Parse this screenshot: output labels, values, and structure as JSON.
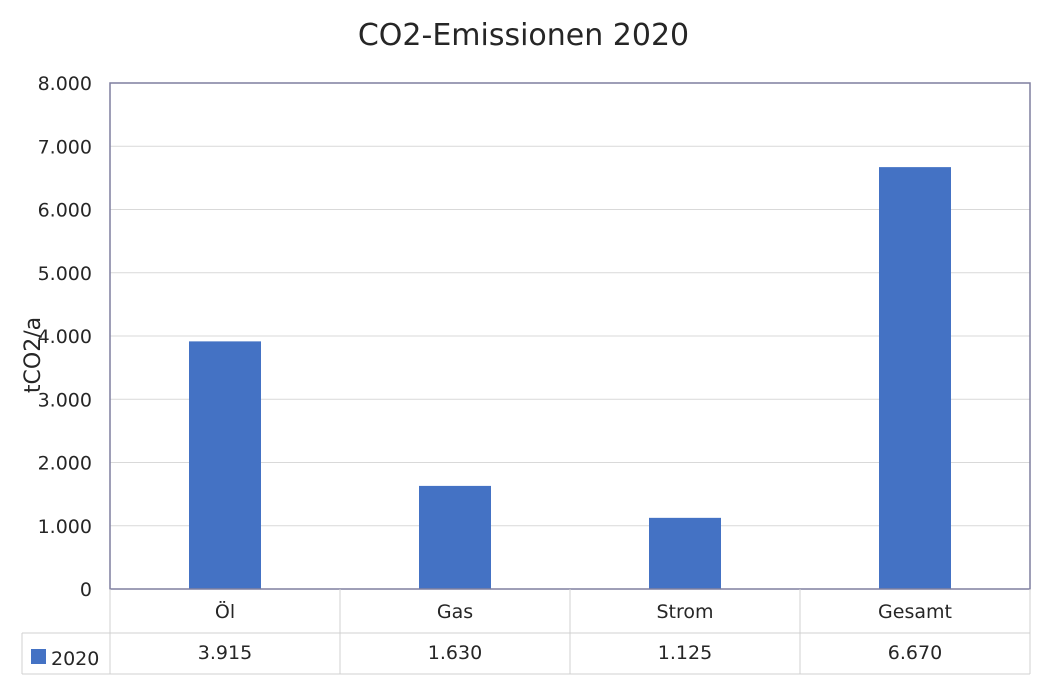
{
  "chart_data": {
    "type": "bar",
    "title": "CO2-Emissionen 2020",
    "xlabel": "",
    "ylabel": "tCO2/a",
    "ylim": [
      0,
      8000
    ],
    "yticks": [
      0,
      1000,
      2000,
      3000,
      4000,
      5000,
      6000,
      7000,
      8000
    ],
    "ytick_labels": [
      "0",
      "1.000",
      "2.000",
      "3.000",
      "4.000",
      "5.000",
      "6.000",
      "7.000",
      "8.000"
    ],
    "categories": [
      "Öl",
      "Gas",
      "Strom",
      "Gesamt"
    ],
    "series": [
      {
        "name": "2020",
        "values": [
          3915,
          1630,
          1125,
          6670
        ],
        "value_labels": [
          "3.915",
          "1.630",
          "1.125",
          "6.670"
        ],
        "color": "#4472C4"
      }
    ],
    "grid": true,
    "legend": "data-table-left",
    "data_table": true
  }
}
